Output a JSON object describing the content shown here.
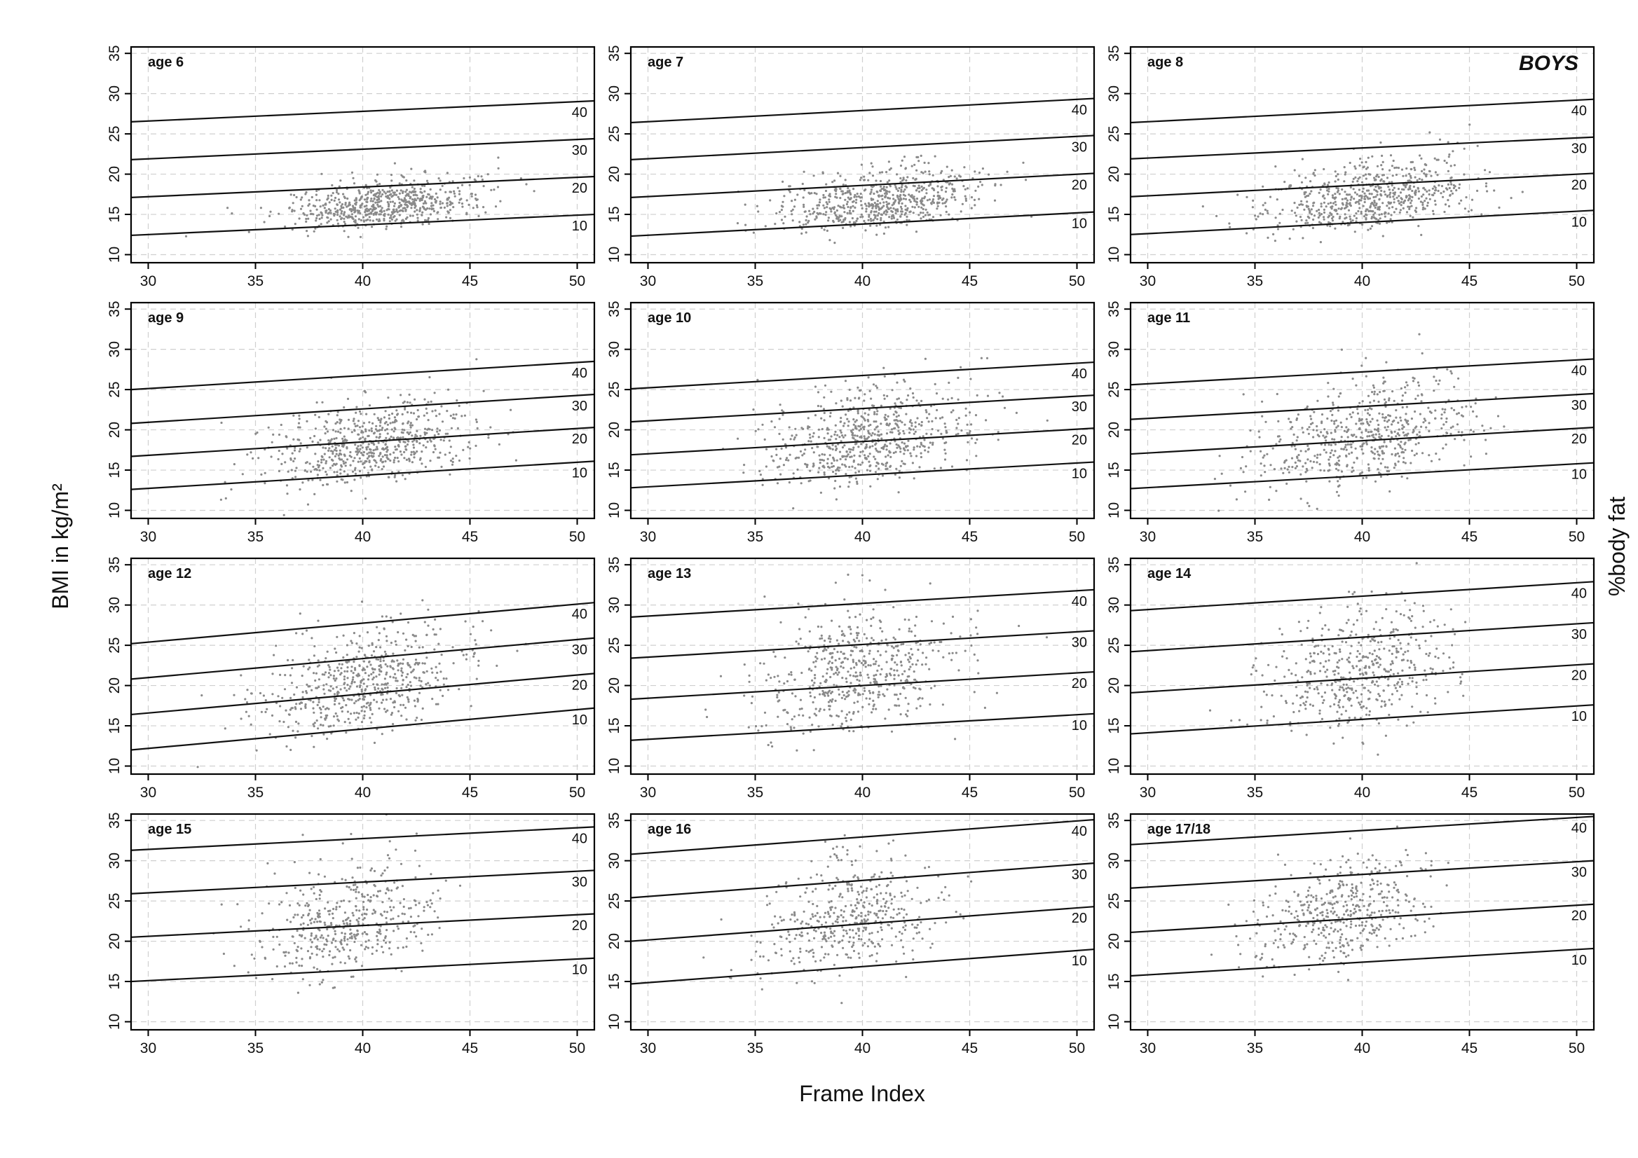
{
  "figure": {
    "badge": "BOYS",
    "xlabel": "Frame Index",
    "ylabel": "BMI in kg/m²",
    "y2label": "%body fat"
  },
  "chart_data": {
    "type": "scatter",
    "xlabel": "Frame Index",
    "ylabel": "BMI in kg/m²",
    "y2label": "%body fat",
    "xlim": [
      29.2,
      50.8
    ],
    "ylim": [
      9,
      35.8
    ],
    "xticks": [
      30,
      35,
      40,
      45,
      50
    ],
    "yticks": [
      10,
      15,
      20,
      25,
      30,
      35
    ],
    "grid": true,
    "grid_style": "dashed light gray",
    "point_color": "#8a8a8a",
    "line_color": "#111111",
    "panels": [
      {
        "label": "age 6",
        "badge": true,
        "cloud": {
          "cx": 41.0,
          "sx": 2.2,
          "cy": 15.7,
          "sy": 1.5,
          "n": 650,
          "slope": 0.25
        },
        "lines": [
          {
            "pct": "10",
            "y": [
              12.4,
              15.0
            ]
          },
          {
            "pct": "20",
            "y": [
              17.1,
              19.7
            ]
          },
          {
            "pct": "30",
            "y": [
              21.8,
              24.4
            ]
          },
          {
            "pct": "40",
            "y": [
              26.5,
              29.1
            ]
          }
        ]
      },
      {
        "label": "age 7",
        "cloud": {
          "cx": 40.8,
          "sx": 2.4,
          "cy": 16.0,
          "sy": 1.9,
          "n": 650,
          "slope": 0.3
        },
        "lines": [
          {
            "pct": "10",
            "y": [
              12.3,
              15.3
            ]
          },
          {
            "pct": "20",
            "y": [
              17.1,
              20.1
            ]
          },
          {
            "pct": "30",
            "y": [
              21.8,
              24.8
            ]
          },
          {
            "pct": "40",
            "y": [
              26.4,
              29.4
            ]
          }
        ]
      },
      {
        "label": "age 8",
        "cloud": {
          "cx": 40.5,
          "sx": 2.4,
          "cy": 16.6,
          "sy": 2.3,
          "n": 650,
          "slope": 0.35
        },
        "lines": [
          {
            "pct": "10",
            "y": [
              12.5,
              15.5
            ]
          },
          {
            "pct": "20",
            "y": [
              17.2,
              20.1
            ]
          },
          {
            "pct": "30",
            "y": [
              21.9,
              24.6
            ]
          },
          {
            "pct": "40",
            "y": [
              26.4,
              29.3
            ]
          }
        ]
      },
      {
        "label": "age 9",
        "cloud": {
          "cx": 40.2,
          "sx": 2.3,
          "cy": 17.2,
          "sy": 2.6,
          "n": 650,
          "slope": 0.4
        },
        "lines": [
          {
            "pct": "10",
            "y": [
              12.6,
              16.1
            ]
          },
          {
            "pct": "20",
            "y": [
              16.7,
              20.3
            ]
          },
          {
            "pct": "30",
            "y": [
              20.8,
              24.4
            ]
          },
          {
            "pct": "40",
            "y": [
              25.0,
              28.5
            ]
          }
        ]
      },
      {
        "label": "age 10",
        "cloud": {
          "cx": 40.3,
          "sx": 2.4,
          "cy": 17.9,
          "sy": 3.0,
          "n": 650,
          "slope": 0.45
        },
        "lines": [
          {
            "pct": "10",
            "y": [
              12.8,
              16.0
            ]
          },
          {
            "pct": "20",
            "y": [
              16.9,
              20.2
            ]
          },
          {
            "pct": "30",
            "y": [
              21.0,
              24.3
            ]
          },
          {
            "pct": "40",
            "y": [
              25.1,
              28.4
            ]
          }
        ]
      },
      {
        "label": "age 11",
        "cloud": {
          "cx": 40.0,
          "sx": 2.5,
          "cy": 18.4,
          "sy": 3.2,
          "n": 600,
          "slope": 0.45
        },
        "lines": [
          {
            "pct": "10",
            "y": [
              12.7,
              15.9
            ]
          },
          {
            "pct": "20",
            "y": [
              17.0,
              20.3
            ]
          },
          {
            "pct": "30",
            "y": [
              21.3,
              24.5
            ]
          },
          {
            "pct": "40",
            "y": [
              25.6,
              28.8
            ]
          }
        ]
      },
      {
        "label": "age 12",
        "cloud": {
          "cx": 40.0,
          "sx": 2.4,
          "cy": 19.3,
          "sy": 3.3,
          "n": 600,
          "slope": 0.5
        },
        "lines": [
          {
            "pct": "10",
            "y": [
              12.0,
              17.2
            ]
          },
          {
            "pct": "20",
            "y": [
              16.4,
              21.5
            ]
          },
          {
            "pct": "30",
            "y": [
              20.8,
              25.9
            ]
          },
          {
            "pct": "40",
            "y": [
              25.2,
              30.3
            ]
          }
        ]
      },
      {
        "label": "age 13",
        "cloud": {
          "cx": 40.0,
          "sx": 2.3,
          "cy": 20.3,
          "sy": 3.8,
          "n": 550,
          "slope": 0.5
        },
        "lines": [
          {
            "pct": "10",
            "y": [
              13.2,
              16.5
            ]
          },
          {
            "pct": "20",
            "y": [
              18.3,
              21.7
            ]
          },
          {
            "pct": "30",
            "y": [
              23.4,
              26.8
            ]
          },
          {
            "pct": "40",
            "y": [
              28.5,
              31.9
            ]
          }
        ]
      },
      {
        "label": "age 14",
        "cloud": {
          "cx": 39.8,
          "sx": 2.2,
          "cy": 20.6,
          "sy": 3.8,
          "n": 500,
          "slope": 0.5
        },
        "lines": [
          {
            "pct": "10",
            "y": [
              14.0,
              17.6
            ]
          },
          {
            "pct": "20",
            "y": [
              19.1,
              22.7
            ]
          },
          {
            "pct": "30",
            "y": [
              24.2,
              27.8
            ]
          },
          {
            "pct": "40",
            "y": [
              29.3,
              32.9
            ]
          }
        ]
      },
      {
        "label": "age 15",
        "cloud": {
          "cx": 39.3,
          "sx": 2.0,
          "cy": 21.4,
          "sy": 3.4,
          "n": 450,
          "slope": 0.5
        },
        "lines": [
          {
            "pct": "10",
            "y": [
              15.0,
              17.9
            ]
          },
          {
            "pct": "20",
            "y": [
              20.5,
              23.4
            ]
          },
          {
            "pct": "30",
            "y": [
              25.9,
              28.8
            ]
          },
          {
            "pct": "40",
            "y": [
              31.3,
              34.2
            ]
          }
        ]
      },
      {
        "label": "age 16",
        "cloud": {
          "cx": 39.2,
          "sx": 2.0,
          "cy": 21.7,
          "sy": 3.5,
          "n": 450,
          "slope": 0.5
        },
        "lines": [
          {
            "pct": "10",
            "y": [
              14.7,
              19.0
            ]
          },
          {
            "pct": "20",
            "y": [
              20.0,
              24.3
            ]
          },
          {
            "pct": "30",
            "y": [
              25.4,
              29.7
            ]
          },
          {
            "pct": "40",
            "y": [
              30.8,
              35.1
            ]
          }
        ]
      },
      {
        "label": "age 17/18",
        "cloud": {
          "cx": 39.0,
          "sx": 2.0,
          "cy": 22.6,
          "sy": 3.2,
          "n": 450,
          "slope": 0.5
        },
        "lines": [
          {
            "pct": "10",
            "y": [
              15.7,
              19.1
            ]
          },
          {
            "pct": "20",
            "y": [
              21.1,
              24.6
            ]
          },
          {
            "pct": "30",
            "y": [
              26.6,
              30.0
            ]
          },
          {
            "pct": "40",
            "y": [
              32.0,
              35.5
            ]
          }
        ]
      }
    ]
  }
}
